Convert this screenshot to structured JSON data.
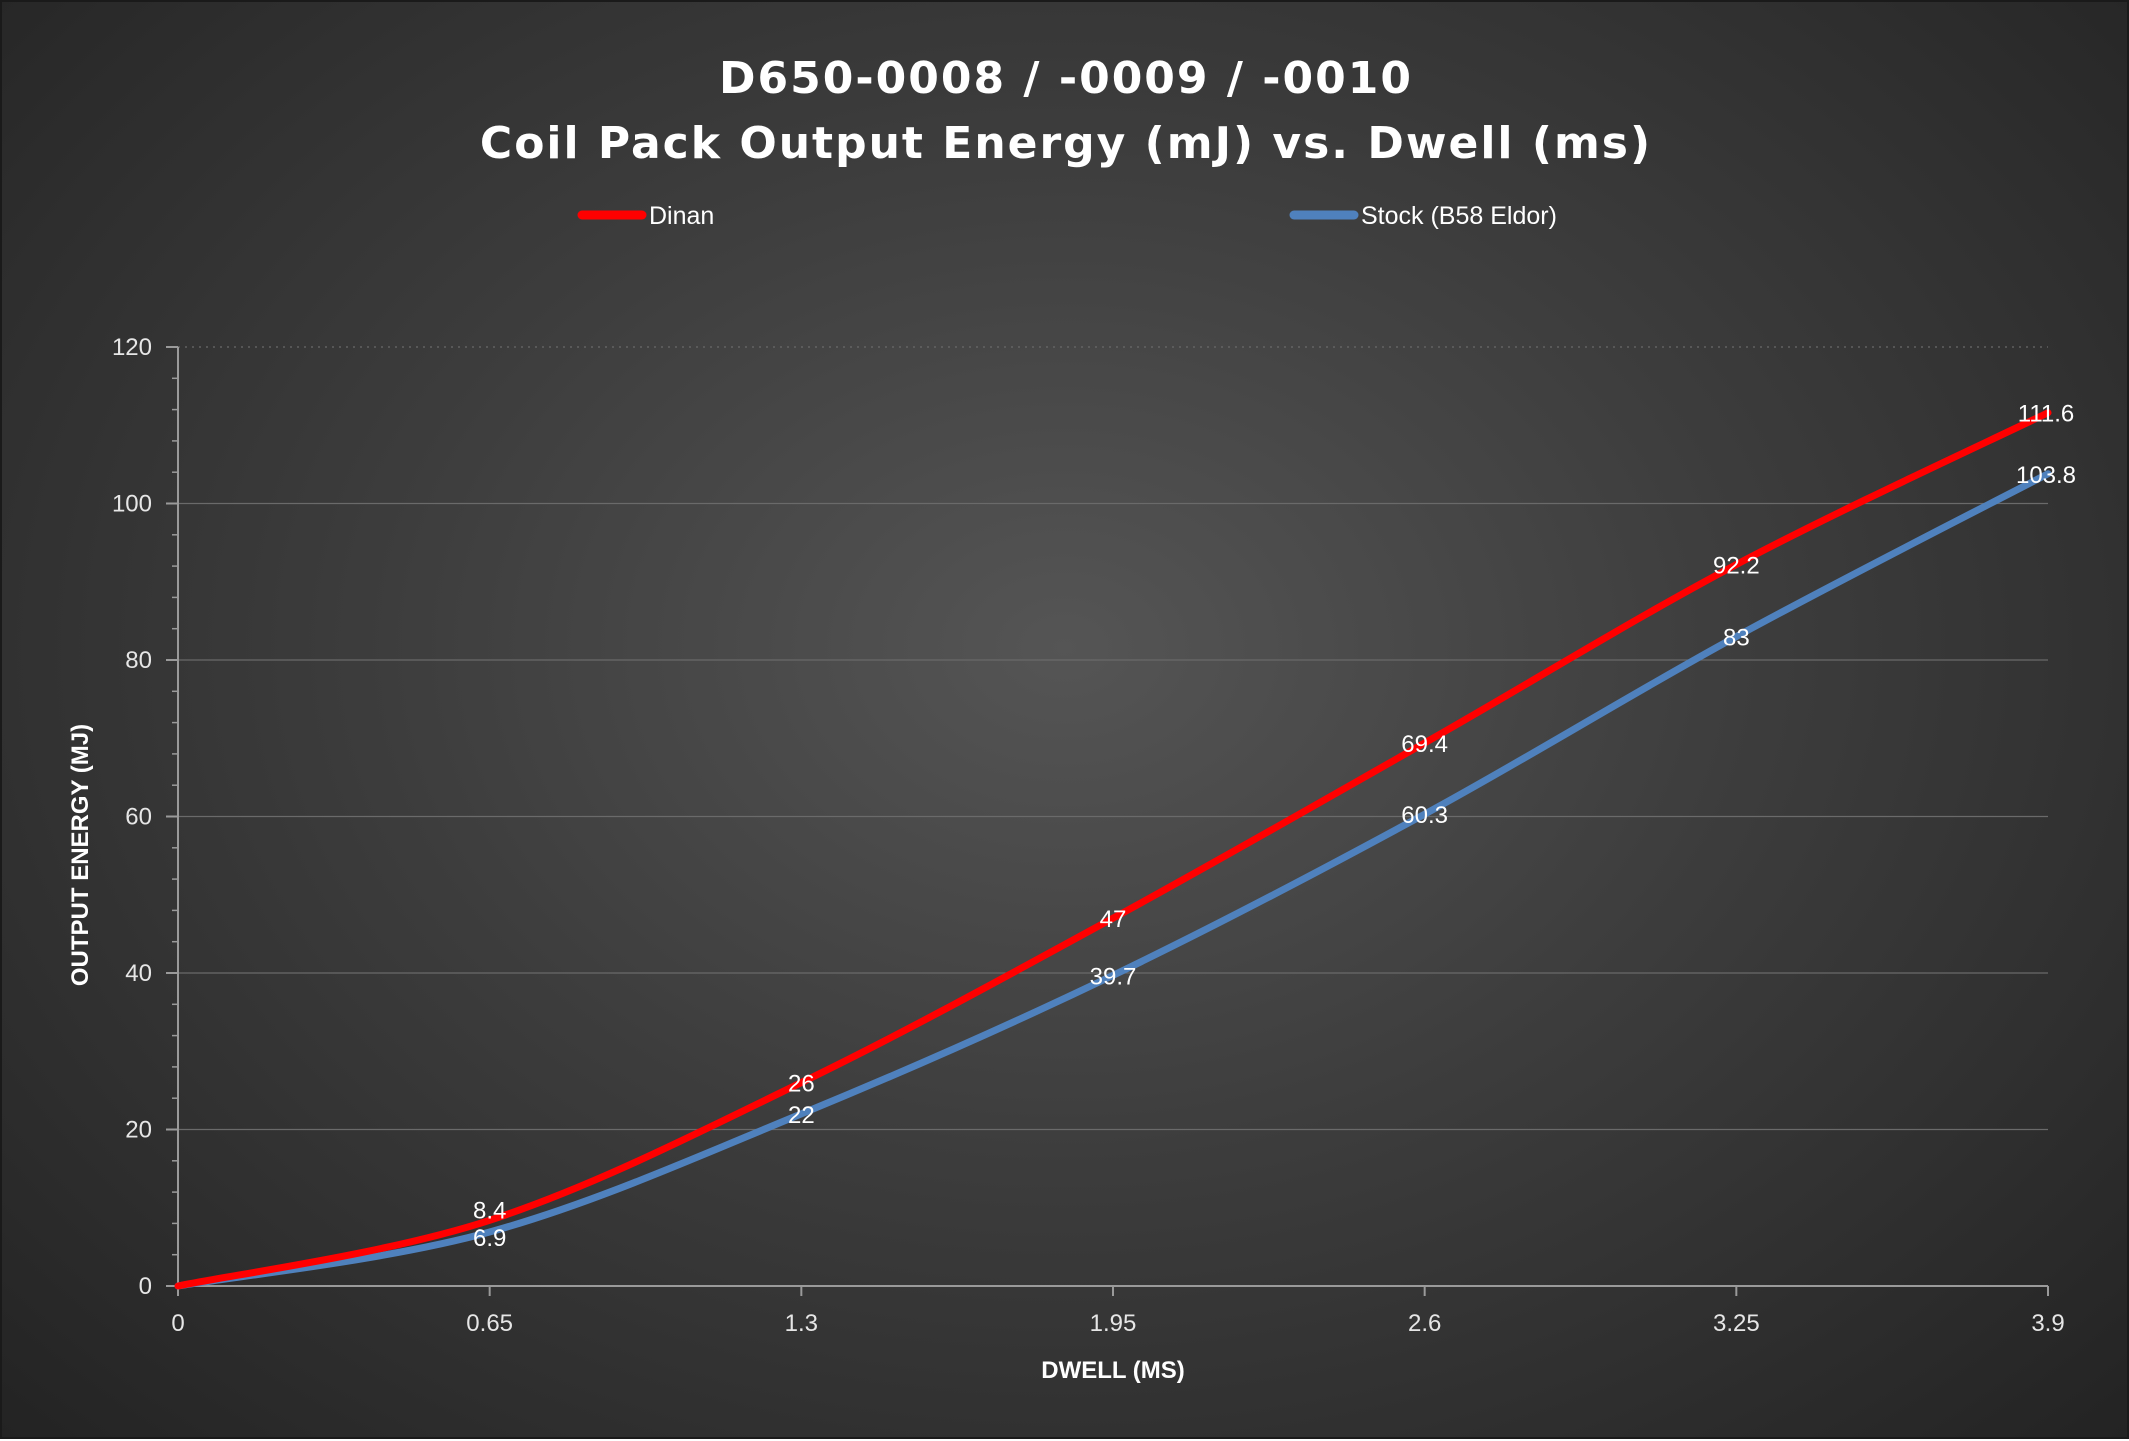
{
  "chart_data": {
    "type": "line",
    "title_line1": "D650-0008 / -0009 / -0010",
    "title_line2": "Coil Pack Output Energy (mJ) vs. Dwell (ms)",
    "xlabel": "DWELL (MS)",
    "ylabel": "OUTPUT ENERGY (MJ)",
    "x": [
      0,
      0.65,
      1.3,
      1.95,
      2.6,
      3.25,
      3.9
    ],
    "x_tick_labels": [
      "0",
      "0.65",
      "1.3",
      "1.95",
      "2.6",
      "3.25",
      "3.9"
    ],
    "xlim": [
      0,
      3.9
    ],
    "ylim": [
      0,
      120
    ],
    "y_ticks": [
      0,
      20,
      40,
      60,
      80,
      100,
      120
    ],
    "y_tick_labels": [
      "0",
      "20",
      "40",
      "60",
      "80",
      "100",
      "120"
    ],
    "grid": true,
    "legend_position": "top",
    "series": [
      {
        "name": "Dinan",
        "color": "#ff0000",
        "values": [
          0,
          8.4,
          26,
          47,
          69.4,
          92.2,
          111.6
        ],
        "labels": [
          "",
          "8.4",
          "26",
          "47",
          "69.4",
          "92.2",
          "111.6"
        ]
      },
      {
        "name": "Stock (B58 Eldor)",
        "color": "#4f81bd",
        "values": [
          0,
          6.9,
          22,
          39.7,
          60.3,
          83,
          103.8
        ],
        "labels": [
          "",
          "6.9",
          "22",
          "39.7",
          "60.3",
          "83",
          "103.8"
        ]
      }
    ]
  }
}
